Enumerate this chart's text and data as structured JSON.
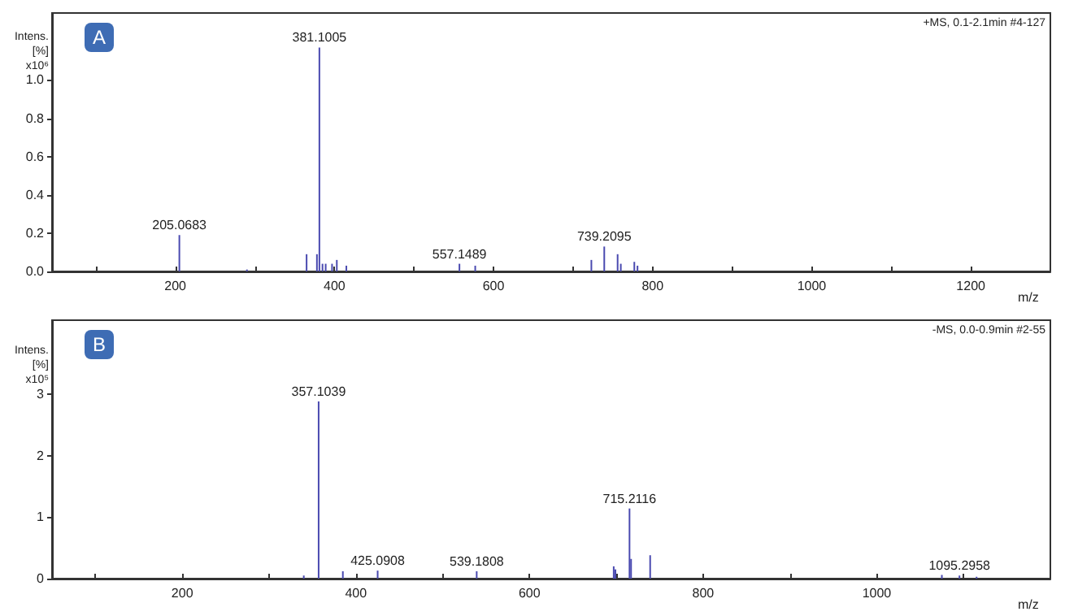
{
  "chart_data": [
    {
      "type": "bar",
      "title": "A",
      "subtitle": "+MS, 0.1-2.1min #4-127",
      "xlabel": "m/z",
      "ylabel": "Intens.\n[%]\nx10⁶",
      "x": [
        205.0683,
        290,
        365,
        378,
        381.1005,
        385,
        389,
        397,
        403,
        415,
        557.1489,
        577,
        723,
        739.2095,
        756,
        760,
        777,
        781
      ],
      "values": [
        0.19,
        0.01,
        0.09,
        0.09,
        1.17,
        0.04,
        0.04,
        0.04,
        0.06,
        0.03,
        0.04,
        0.03,
        0.06,
        0.13,
        0.09,
        0.04,
        0.05,
        0.03
      ],
      "annotations": [
        {
          "text": "205.0683",
          "x": 205.0683,
          "y": 0.19
        },
        {
          "text": "381.1005",
          "x": 381.1005,
          "y": 1.17
        },
        {
          "text": "557.1489",
          "x": 557.1489,
          "y": 0.04
        },
        {
          "text": "739.2095",
          "x": 739.2095,
          "y": 0.13
        }
      ],
      "color": "#4a4ab0",
      "xlim": [
        45,
        1300
      ],
      "xticks": [
        {
          "value": 100,
          "label": null
        },
        200,
        {
          "value": 300,
          "label": null
        },
        400,
        {
          "value": 500,
          "label": null
        },
        600,
        {
          "value": 700,
          "label": null
        },
        800,
        {
          "value": 900,
          "label": null
        },
        1000,
        {
          "value": 1100,
          "label": null
        },
        1200
      ],
      "ylim": [
        0,
        1.35
      ],
      "yticks": [
        {
          "value": 0,
          "label": "0.0"
        },
        0.2,
        0.4,
        0.6,
        0.8,
        {
          "value": 1,
          "label": "1.0"
        }
      ],
      "grid": false
    },
    {
      "type": "bar",
      "title": "B",
      "subtitle": "-MS, 0.0-0.9min #2-55",
      "xlabel": "m/z",
      "ylabel": "Intens.\n[%]\nx10⁵",
      "x": [
        340,
        357.1039,
        385,
        425.0908,
        539.1808,
        697,
        699,
        715.2116,
        717,
        739,
        1075,
        1095.2958,
        1115
      ],
      "values": [
        0.05,
        2.88,
        0.12,
        0.13,
        0.12,
        0.2,
        0.15,
        1.14,
        0.32,
        0.38,
        0.06,
        0.05,
        0.03
      ],
      "annotations": [
        {
          "text": "357.1039",
          "x": 357.1039,
          "y": 2.88
        },
        {
          "text": "425.0908",
          "x": 425.0908,
          "y": 0.13
        },
        {
          "text": "539.1808",
          "x": 539.1808,
          "y": 0.12
        },
        {
          "text": "715.2116",
          "x": 715.2116,
          "y": 1.14
        },
        {
          "text": "1095.2958",
          "x": 1095.2958,
          "y": 0.05
        }
      ],
      "color": "#4a4ab0",
      "xlim": [
        50,
        1200
      ],
      "xticks": [
        {
          "value": 100,
          "label": null
        },
        200,
        {
          "value": 300,
          "label": null
        },
        400,
        {
          "value": 500,
          "label": null
        },
        600,
        {
          "value": 700,
          "label": null
        },
        800,
        {
          "value": 900,
          "label": null
        },
        1000,
        {
          "value": 1100,
          "label": null
        }
      ],
      "ylim": [
        0,
        4.2
      ],
      "yticks": [
        0,
        1,
        2,
        3
      ],
      "grid": false
    }
  ]
}
